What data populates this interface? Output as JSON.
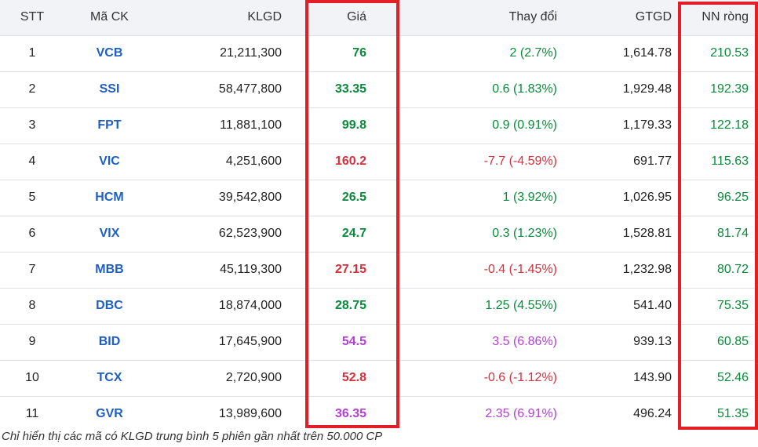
{
  "table": {
    "headers": {
      "stt": "STT",
      "code": "Mã CK",
      "volume": "KLGD",
      "price": "Giá",
      "change": "Thay đổi",
      "value": "GTGD",
      "foreign_net": "NN ròng"
    },
    "rows": [
      {
        "stt": "1",
        "code": "VCB",
        "volume": "21,211,300",
        "price": "76",
        "change": "2 (2.7%)",
        "value": "1,614.78",
        "foreign_net": "210.53",
        "trend": "up"
      },
      {
        "stt": "2",
        "code": "SSI",
        "volume": "58,477,800",
        "price": "33.35",
        "change": "0.6 (1.83%)",
        "value": "1,929.48",
        "foreign_net": "192.39",
        "trend": "up"
      },
      {
        "stt": "3",
        "code": "FPT",
        "volume": "11,881,100",
        "price": "99.8",
        "change": "0.9 (0.91%)",
        "value": "1,179.33",
        "foreign_net": "122.18",
        "trend": "up"
      },
      {
        "stt": "4",
        "code": "VIC",
        "volume": "4,251,600",
        "price": "160.2",
        "change": "-7.7 (-4.59%)",
        "value": "691.77",
        "foreign_net": "115.63",
        "trend": "down"
      },
      {
        "stt": "5",
        "code": "HCM",
        "volume": "39,542,800",
        "price": "26.5",
        "change": "1 (3.92%)",
        "value": "1,026.95",
        "foreign_net": "96.25",
        "trend": "up"
      },
      {
        "stt": "6",
        "code": "VIX",
        "volume": "62,523,900",
        "price": "24.7",
        "change": "0.3 (1.23%)",
        "value": "1,528.81",
        "foreign_net": "81.74",
        "trend": "up"
      },
      {
        "stt": "7",
        "code": "MBB",
        "volume": "45,119,300",
        "price": "27.15",
        "change": "-0.4 (-1.45%)",
        "value": "1,232.98",
        "foreign_net": "80.72",
        "trend": "down"
      },
      {
        "stt": "8",
        "code": "DBC",
        "volume": "18,874,000",
        "price": "28.75",
        "change": "1.25 (4.55%)",
        "value": "541.40",
        "foreign_net": "75.35",
        "trend": "up"
      },
      {
        "stt": "9",
        "code": "BID",
        "volume": "17,645,900",
        "price": "54.5",
        "change": "3.5 (6.86%)",
        "value": "939.13",
        "foreign_net": "60.85",
        "trend": "ceil"
      },
      {
        "stt": "10",
        "code": "TCX",
        "volume": "2,720,900",
        "price": "52.8",
        "change": "-0.6 (-1.12%)",
        "value": "143.90",
        "foreign_net": "52.46",
        "trend": "down"
      },
      {
        "stt": "11",
        "code": "GVR",
        "volume": "13,989,600",
        "price": "36.35",
        "change": "2.35 (6.91%)",
        "value": "496.24",
        "foreign_net": "51.35",
        "trend": "ceil"
      }
    ]
  },
  "colors": {
    "up": "#0a8a3b",
    "down": "#d6303c",
    "ceiling": "#b43fd6",
    "code": "#1f5fc4",
    "highlight_border": "#e21f26"
  },
  "footnote": "Chỉ hiển thị các mã có KLGD trung bình 5 phiên gần nhất trên 50.000 CP"
}
